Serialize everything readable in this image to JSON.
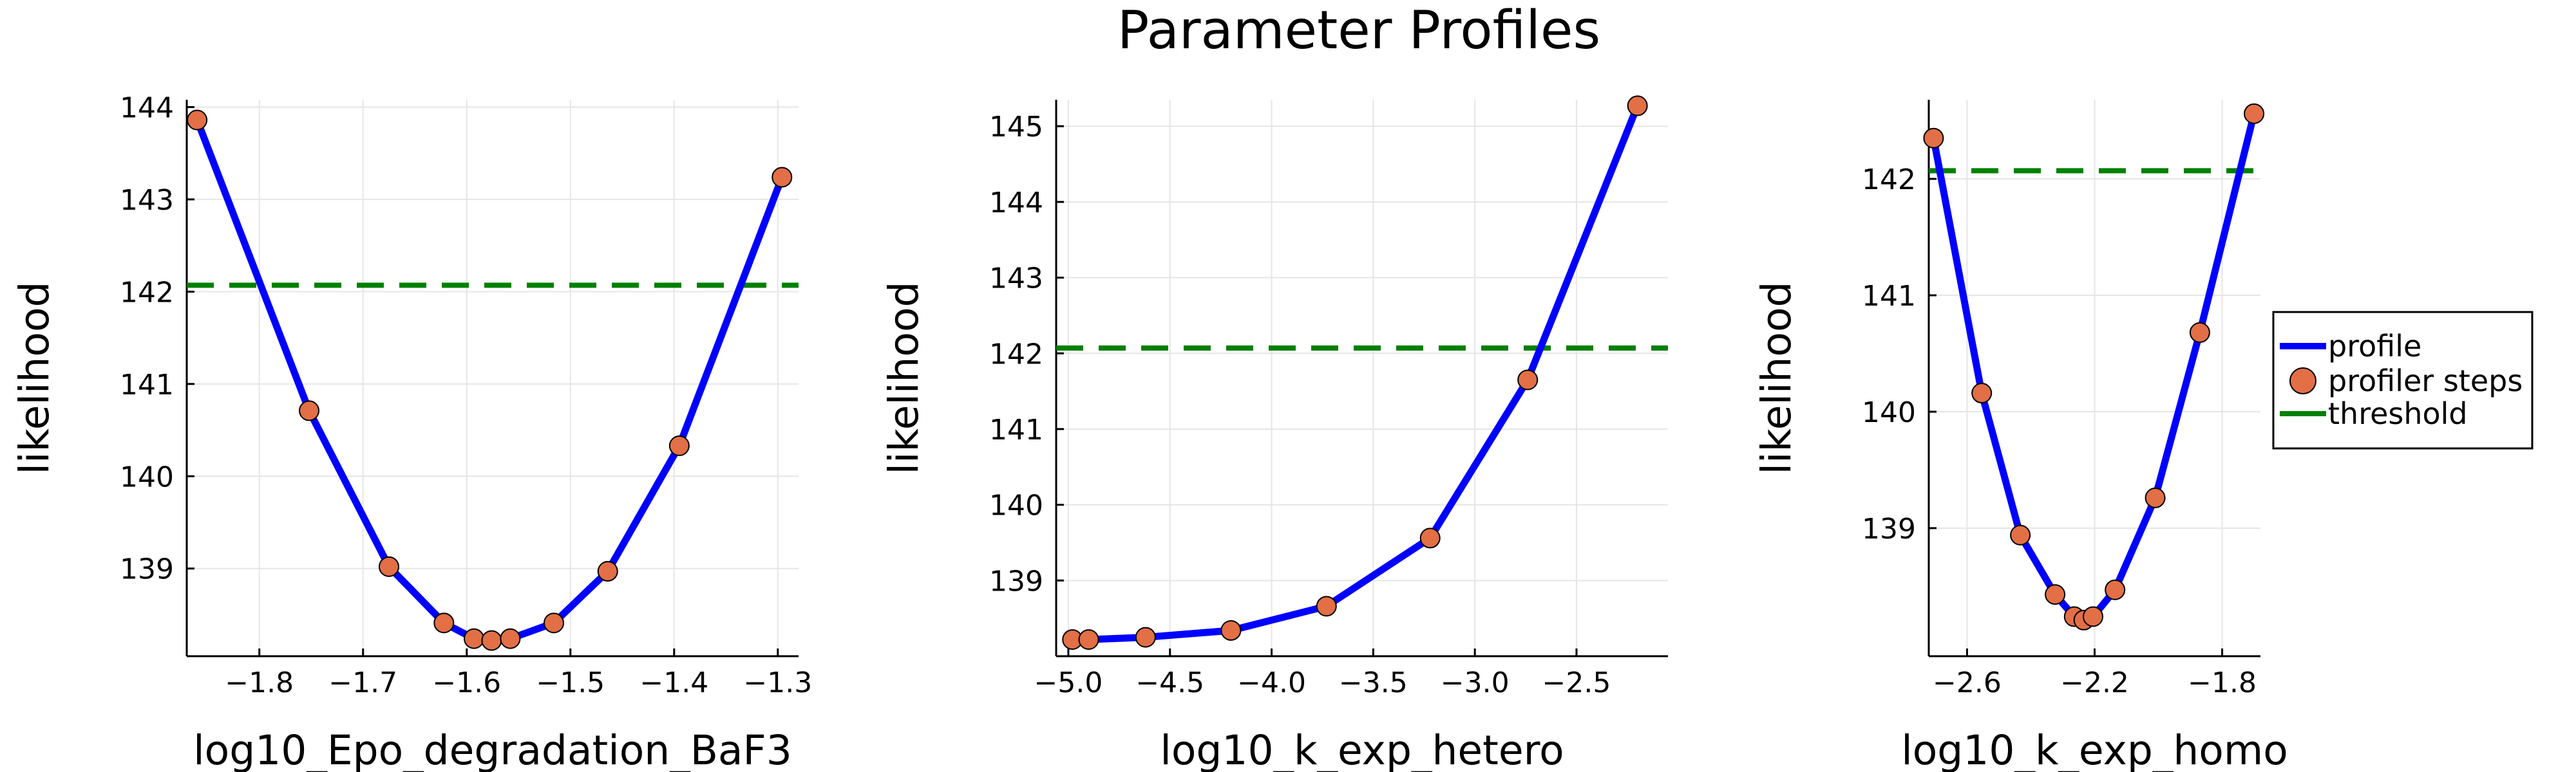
{
  "figure": {
    "title": "Parameter Profiles",
    "colors": {
      "profile": "#0000ff",
      "steps_fill": "#e26f46",
      "steps_edge": "#000000",
      "threshold": "#008000",
      "grid": "#e6e6e6",
      "axis": "#000000"
    }
  },
  "legend": {
    "placement": "right",
    "entries": [
      {
        "label": "profile",
        "kind": "line",
        "color": "#0000ff"
      },
      {
        "label": "profiler steps",
        "kind": "marker",
        "color": "#e26f46"
      },
      {
        "label": "threshold",
        "kind": "line",
        "color": "#008000"
      }
    ]
  },
  "chart_data": [
    {
      "type": "line",
      "xlabel": "log10_Epo_degradation_BaF3",
      "ylabel": "likelihood",
      "xlim": [
        -1.87,
        -1.28
      ],
      "ylim": [
        138.05,
        144.08
      ],
      "xticks": [
        -1.8,
        -1.7,
        -1.6,
        -1.5,
        -1.4,
        -1.3
      ],
      "xtick_labels": [
        "−1.8",
        "−1.7",
        "−1.6",
        "−1.5",
        "−1.4",
        "−1.3"
      ],
      "yticks": [
        139,
        140,
        141,
        142,
        143,
        144
      ],
      "ytick_labels": [
        "139",
        "140",
        "141",
        "142",
        "143",
        "144"
      ],
      "grid": true,
      "threshold": 142.07,
      "x": [
        -1.86,
        -1.752,
        -1.675,
        -1.622,
        -1.593,
        -1.576,
        -1.558,
        -1.516,
        -1.464,
        -1.395,
        -1.296
      ],
      "y": [
        143.86,
        140.71,
        139.02,
        138.41,
        138.24,
        138.22,
        138.24,
        138.41,
        138.97,
        140.33,
        143.24
      ]
    },
    {
      "type": "line",
      "xlabel": "log10_k_exp_hetero",
      "ylabel": "likelihood",
      "xlim": [
        -5.06,
        -2.05
      ],
      "ylim": [
        138.0,
        145.35
      ],
      "xticks": [
        -5.0,
        -4.5,
        -4.0,
        -3.5,
        -3.0,
        -2.5
      ],
      "xtick_labels": [
        "−5.0",
        "−4.5",
        "−4.0",
        "−3.5",
        "−3.0",
        "−2.5"
      ],
      "yticks": [
        139,
        140,
        141,
        142,
        143,
        144,
        145
      ],
      "ytick_labels": [
        "139",
        "140",
        "141",
        "142",
        "143",
        "144",
        "145"
      ],
      "grid": true,
      "threshold": 142.07,
      "x": [
        -4.98,
        -4.9,
        -4.62,
        -4.2,
        -3.73,
        -3.22,
        -2.74,
        -2.2
      ],
      "y": [
        138.22,
        138.22,
        138.25,
        138.34,
        138.66,
        139.56,
        141.65,
        145.27
      ]
    },
    {
      "type": "line",
      "xlabel": "log10_k_exp_homo",
      "ylabel": "likelihood",
      "xlim": [
        -2.72,
        -1.68
      ],
      "ylim": [
        137.9,
        142.68
      ],
      "xticks": [
        -2.6,
        -2.2,
        -1.8
      ],
      "xtick_labels": [
        "−2.6",
        "−2.2",
        "−1.8"
      ],
      "yticks": [
        139,
        140,
        141,
        142
      ],
      "ytick_labels": [
        "139",
        "140",
        "141",
        "142"
      ],
      "grid": true,
      "threshold": 142.07,
      "x": [
        -2.705,
        -2.554,
        -2.433,
        -2.324,
        -2.264,
        -2.234,
        -2.205,
        -2.136,
        -2.01,
        -1.87,
        -1.7
      ],
      "y": [
        142.35,
        140.16,
        138.94,
        138.43,
        138.24,
        138.21,
        138.24,
        138.47,
        139.26,
        140.68,
        142.56
      ]
    }
  ]
}
